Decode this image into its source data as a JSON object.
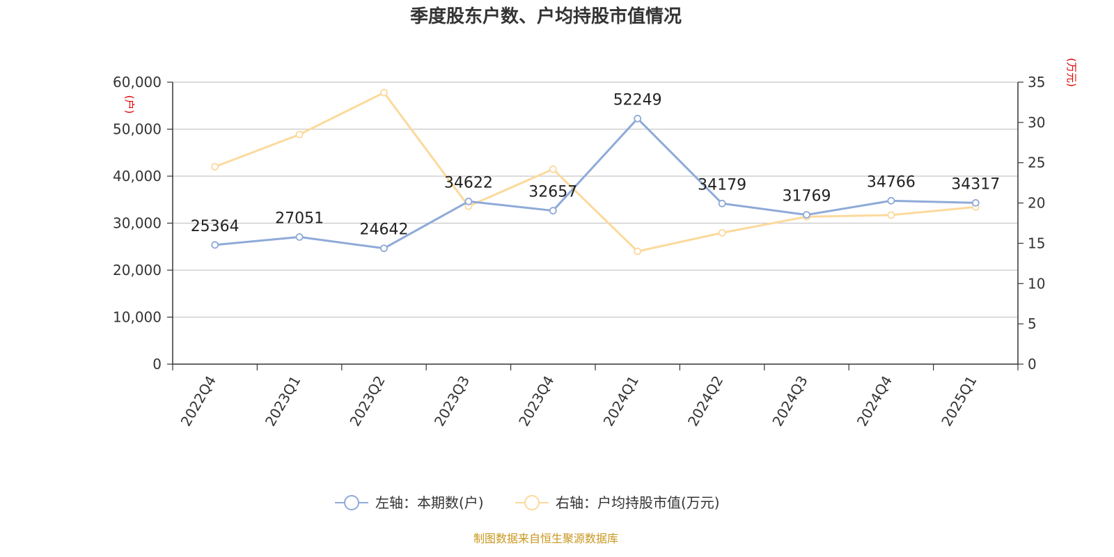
{
  "chart_data": {
    "type": "line",
    "title": "季度股东户数、户均持股市值情况",
    "categories": [
      "2022Q4",
      "2023Q1",
      "2023Q2",
      "2023Q3",
      "2023Q4",
      "2024Q1",
      "2024Q2",
      "2024Q3",
      "2024Q4",
      "2025Q1"
    ],
    "left_axis": {
      "unit": "(户)",
      "ylim": [
        0,
        60000
      ],
      "ticks": [
        0,
        10000,
        20000,
        30000,
        40000,
        50000,
        60000
      ],
      "tick_labels": [
        "0",
        "10,000",
        "20,000",
        "30,000",
        "40,000",
        "50,000",
        "60,000"
      ]
    },
    "right_axis": {
      "unit": "(万元)",
      "ylim": [
        0,
        35
      ],
      "ticks": [
        0,
        5,
        10,
        15,
        20,
        25,
        30,
        35
      ],
      "tick_labels": [
        "0",
        "5",
        "10",
        "15",
        "20",
        "25",
        "30",
        "35"
      ]
    },
    "series": [
      {
        "name": "左轴：本期数(户)",
        "axis": "left",
        "color": "#8eaad8",
        "values": [
          25364,
          27051,
          24642,
          34622,
          32657,
          52249,
          34179,
          31769,
          34766,
          34317
        ],
        "data_labels": [
          "25364",
          "27051",
          "24642",
          "34622",
          "32657",
          "52249",
          "34179",
          "31769",
          "34766",
          "34317"
        ]
      },
      {
        "name": "右轴：户均持股市值(万元)",
        "axis": "right",
        "color": "#fcd99c",
        "values": [
          24.5,
          28.5,
          33.7,
          19.6,
          24.2,
          14.0,
          16.3,
          18.3,
          18.5,
          19.5
        ]
      }
    ],
    "grid": true,
    "legend_position": "bottom-center",
    "source_note": "制图数据来自恒生聚源数据库"
  }
}
